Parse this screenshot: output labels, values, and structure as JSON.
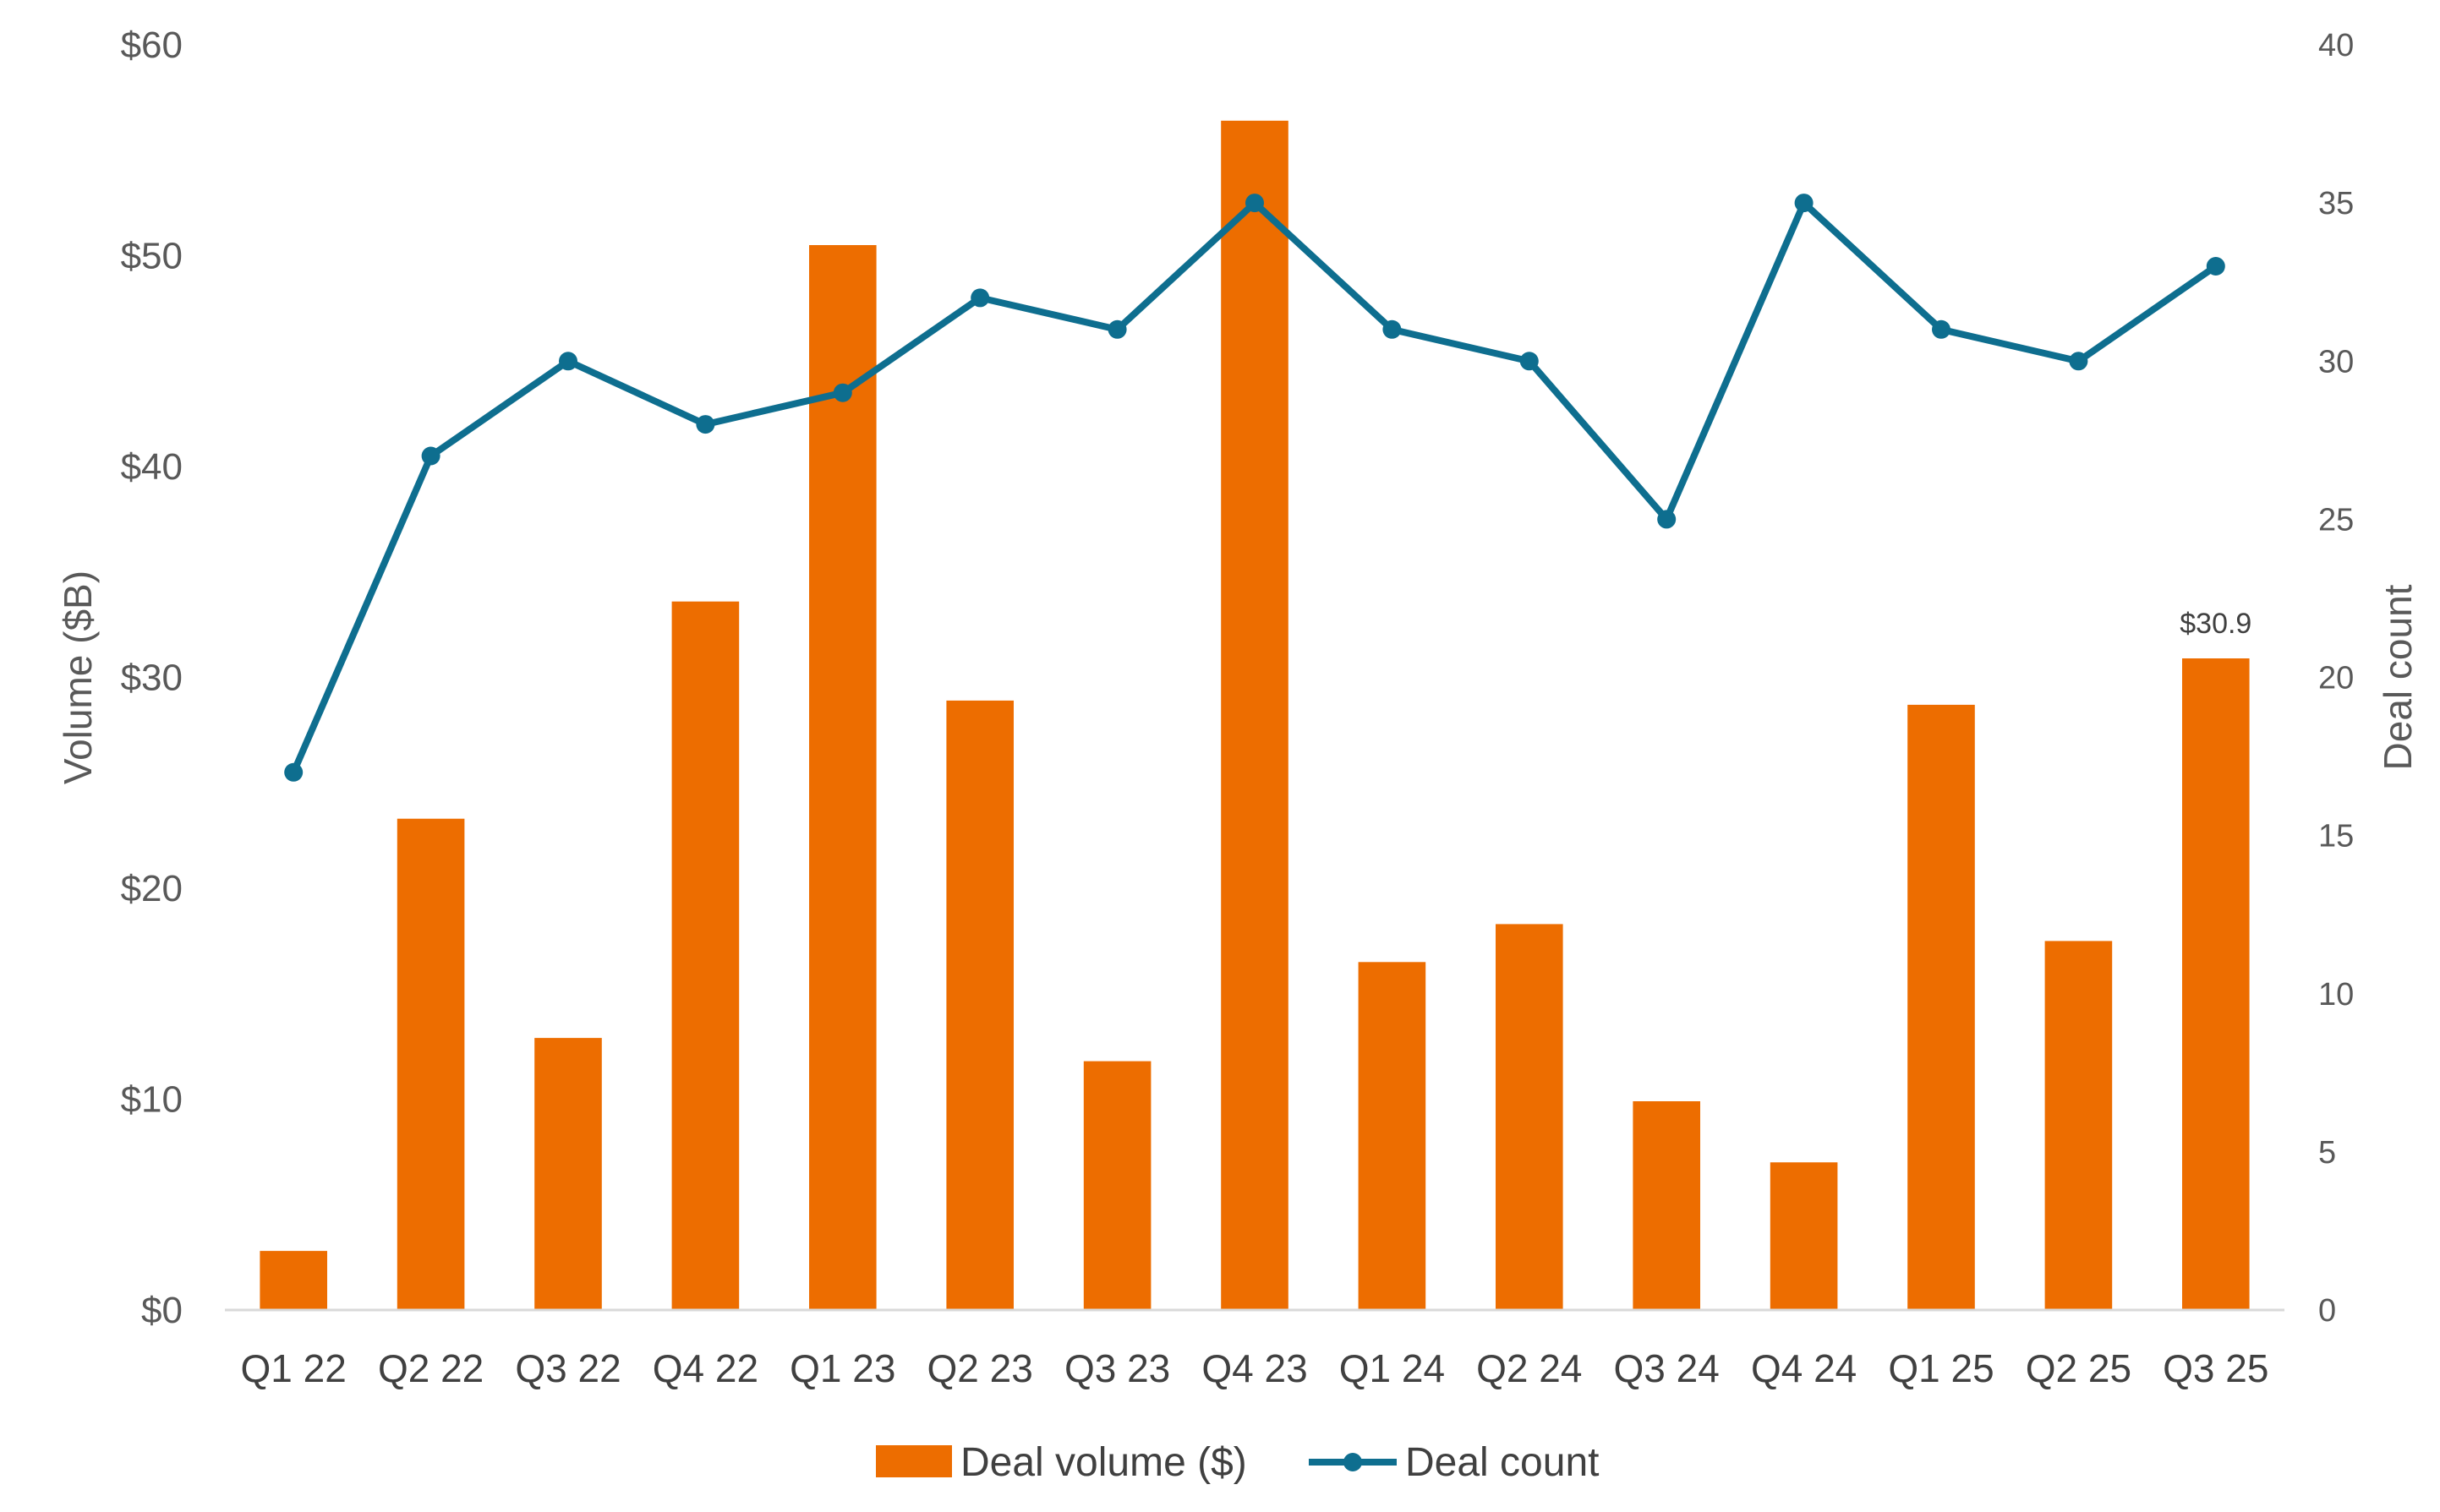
{
  "chart_data": {
    "type": "bar",
    "categories": [
      "Q1 22",
      "Q2 22",
      "Q3 22",
      "Q4 22",
      "Q1 23",
      "Q2 23",
      "Q3 23",
      "Q4 23",
      "Q1 24",
      "Q2 24",
      "Q3 24",
      "Q4 24",
      "Q1 25",
      "Q2 25",
      "Q3 25"
    ],
    "series": [
      {
        "name": "Deal volume ($)",
        "type": "bar",
        "axis": "left",
        "color": "#ED6D00",
        "values": [
          2.8,
          23.3,
          12.9,
          33.6,
          50.5,
          28.9,
          11.8,
          56.4,
          16.5,
          18.3,
          9.9,
          7.0,
          28.7,
          17.5,
          30.9
        ]
      },
      {
        "name": "Deal count",
        "type": "line",
        "axis": "right",
        "color": "#0E6E8F",
        "values": [
          17,
          27,
          30,
          28,
          29,
          32,
          31,
          35,
          31,
          30,
          25,
          35,
          31,
          30,
          33
        ]
      }
    ],
    "ylabel": "Volume ($B)",
    "ylabel_right": "Deal count",
    "ylim": [
      0,
      60
    ],
    "ylim_right": [
      0,
      40
    ],
    "yticks": [
      "$0",
      "$10",
      "$20",
      "$30",
      "$40",
      "$50",
      "$60"
    ],
    "yticks_right": [
      "0",
      "5",
      "10",
      "15",
      "20",
      "25",
      "30",
      "35",
      "40"
    ],
    "data_labels": [
      {
        "category": "Q3 25",
        "series": "Deal volume ($)",
        "text": "$30.9"
      }
    ],
    "grid": false,
    "legend": "bottom-center"
  }
}
